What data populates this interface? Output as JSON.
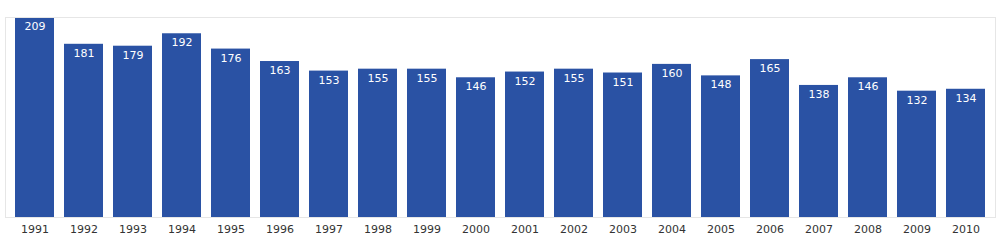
{
  "chart_data": {
    "type": "bar",
    "categories": [
      "1991",
      "1992",
      "1993",
      "1994",
      "1995",
      "1996",
      "1997",
      "1998",
      "1999",
      "2000",
      "2001",
      "2002",
      "2003",
      "2004",
      "2005",
      "2006",
      "2007",
      "2008",
      "2009",
      "2010"
    ],
    "values": [
      209,
      181,
      179,
      192,
      176,
      163,
      153,
      155,
      155,
      146,
      152,
      155,
      151,
      160,
      148,
      165,
      138,
      146,
      132,
      134
    ],
    "color": "#2a52a4",
    "ylim": [
      0,
      209
    ],
    "yticks": [],
    "data_labels": true,
    "tick_labels": "x"
  }
}
